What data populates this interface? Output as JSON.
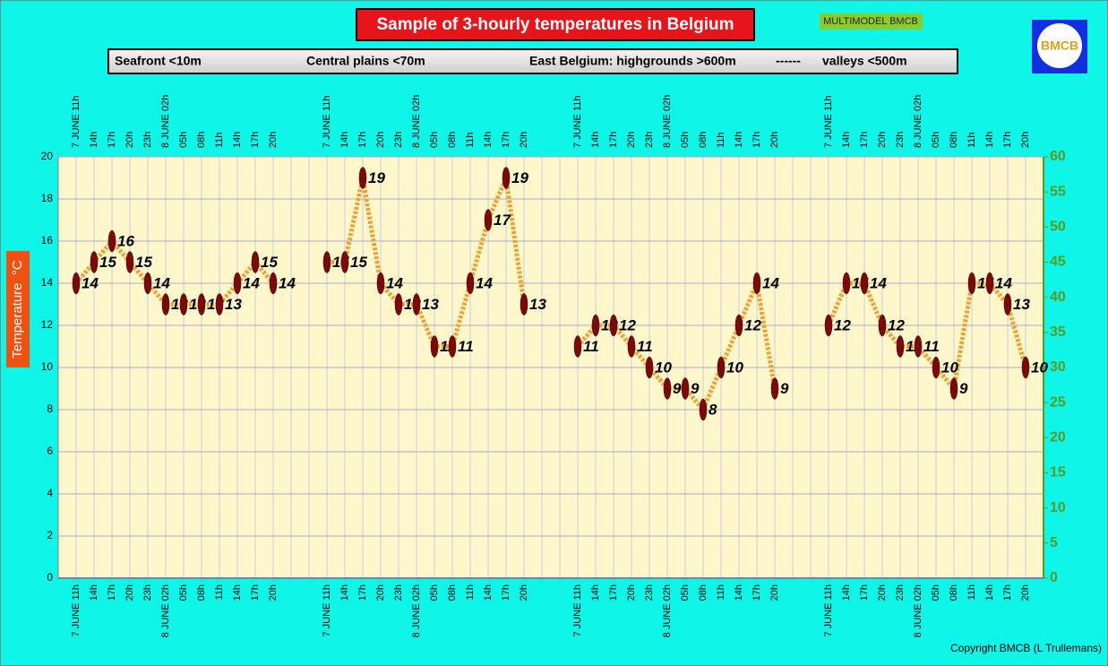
{
  "chart_data": {
    "type": "line",
    "title": "Sample of 3-hourly temperatures in Belgium",
    "badge": "MULTIMODEL BMCB",
    "logo": "BMCB",
    "legend_items": [
      "Seafront <10m",
      "Central plains <70m",
      "East Belgium: highgrounds >600m",
      "------",
      "valleys <500m"
    ],
    "y_label": "Temperature  °C",
    "copyright": "Copyright BMCB (L Trullemans)",
    "categories": [
      "7 JUNE 11h",
      "14h",
      "17h",
      "20h",
      "23h",
      "8 JUNE 02h",
      "05h",
      "08h",
      "11h",
      "14h",
      "17h",
      "20h",
      null,
      null,
      "7 JUNE 11h",
      "14h",
      "17h",
      "20h",
      "23h",
      "8 JUNE 02h",
      "05h",
      "08h",
      "11h",
      "14h",
      "17h",
      "20h",
      null,
      null,
      "7 JUNE 11h",
      "14h",
      "17h",
      "20h",
      "23h",
      "8 JUNE 02h",
      "05h",
      "08h",
      "11h",
      "14h",
      "17h",
      "20h",
      null,
      null,
      "7 JUNE 11h",
      "14h",
      "17h",
      "20h",
      "23h",
      "8 JUNE 02h",
      "05h",
      "08h",
      "11h",
      "14h",
      "17h",
      "20h"
    ],
    "series": [
      {
        "name": null,
        "color": "#7a0a0a",
        "values": [
          14,
          15,
          16,
          15,
          14,
          13,
          13,
          13,
          13,
          14,
          15,
          14,
          null,
          null,
          15,
          15,
          19,
          14,
          13,
          13,
          11,
          11,
          14,
          17,
          19,
          13,
          null,
          null,
          11,
          12,
          12,
          11,
          10,
          9,
          9,
          8,
          10,
          12,
          14,
          9,
          null,
          null,
          12,
          14,
          14,
          12,
          11,
          11,
          10,
          9,
          14,
          14,
          13,
          10
        ]
      }
    ],
    "line_color": "#f0a030",
    "ylim": [
      0,
      20
    ],
    "yticks": [
      0,
      2,
      4,
      6,
      8,
      10,
      12,
      14,
      16,
      18,
      20
    ],
    "y2lim": [
      0,
      60
    ],
    "y2ticks": [
      0,
      5,
      10,
      15,
      20,
      25,
      30,
      35,
      40,
      45,
      50,
      55,
      60
    ],
    "grid": true
  }
}
